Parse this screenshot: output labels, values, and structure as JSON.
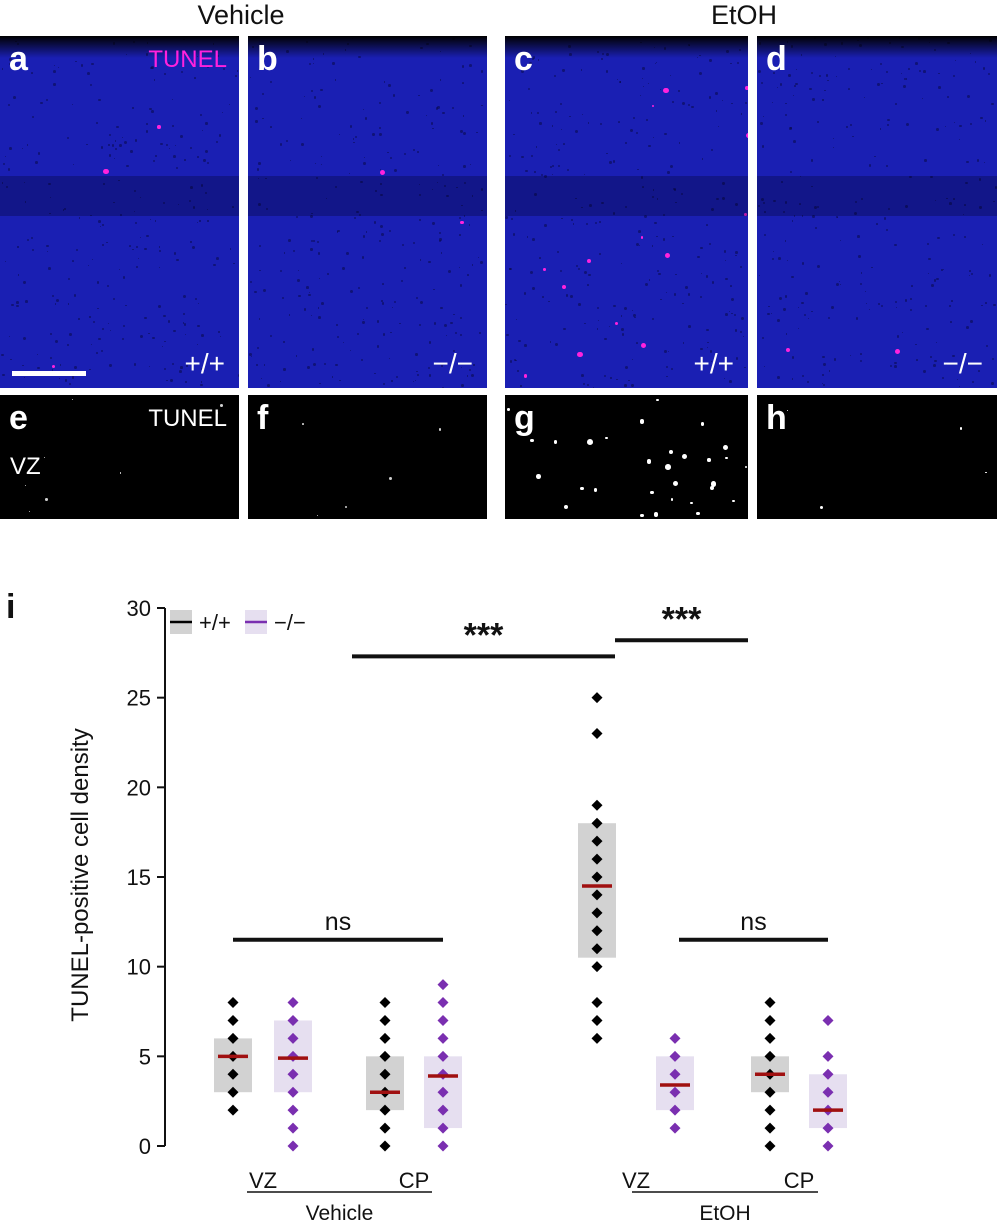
{
  "figure": {
    "groups": [
      "Vehicle",
      "EtOH"
    ],
    "panels": [
      {
        "label": "a",
        "genotype": "+/+",
        "stain": "TUNEL"
      },
      {
        "label": "b",
        "genotype": "−/−"
      },
      {
        "label": "c",
        "genotype": "+/+"
      },
      {
        "label": "d",
        "genotype": "−/−"
      },
      {
        "label": "e",
        "stain": "TUNEL",
        "region": "VZ"
      },
      {
        "label": "f"
      },
      {
        "label": "g"
      },
      {
        "label": "h"
      }
    ],
    "chart_panel_label": "i",
    "colors": {
      "tunel": "#ff22dd",
      "dapi": "#1a1fb3",
      "wt": "#000000",
      "ko": "#7a2fb0",
      "median": "#a01010"
    }
  },
  "chart_data": {
    "type": "scatter",
    "ylabel": "TUNEL-positive cell density",
    "ylim": [
      0,
      30
    ],
    "yticks": [
      "0",
      "5",
      "10",
      "15",
      "20",
      "25",
      "30"
    ],
    "legend": {
      "placement": "top-left",
      "entries": [
        "+/+",
        "−/−"
      ]
    },
    "categories": [
      "VZ",
      "CP",
      "VZ",
      "CP"
    ],
    "group_labels": [
      "Vehicle",
      "EtOH"
    ],
    "series": [
      {
        "name": "+/+",
        "color": "#000000",
        "groups": [
          {
            "treatment": "Vehicle",
            "region": "VZ",
            "box": [
              3,
              6
            ],
            "median": 5,
            "points": [
              2,
              3,
              4,
              5,
              6,
              7,
              8
            ]
          },
          {
            "treatment": "Vehicle",
            "region": "CP",
            "box": [
              2,
              5
            ],
            "median": 3,
            "points": [
              0,
              1,
              2,
              3,
              4,
              5,
              6,
              7,
              8
            ]
          },
          {
            "treatment": "EtOH",
            "region": "VZ",
            "box": [
              10.5,
              18
            ],
            "median": 14.5,
            "points": [
              6,
              7,
              8,
              10,
              11,
              12,
              13,
              14,
              15,
              16,
              17,
              18,
              19,
              23,
              25
            ]
          },
          {
            "treatment": "EtOH",
            "region": "CP",
            "box": [
              3,
              5
            ],
            "median": 4,
            "points": [
              0,
              1,
              2,
              3,
              4,
              5,
              6,
              7,
              8
            ]
          }
        ]
      },
      {
        "name": "−/−",
        "color": "#7a2fb0",
        "groups": [
          {
            "treatment": "Vehicle",
            "region": "VZ",
            "box": [
              3,
              7
            ],
            "median": 4.9,
            "points": [
              0,
              1,
              2,
              3,
              4,
              5,
              6,
              7,
              8
            ]
          },
          {
            "treatment": "Vehicle",
            "region": "CP",
            "box": [
              1,
              5
            ],
            "median": 3.9,
            "points": [
              0,
              1,
              2,
              3,
              4,
              5,
              6,
              7,
              8,
              9
            ]
          },
          {
            "treatment": "EtOH",
            "region": "VZ",
            "box": [
              2,
              5
            ],
            "median": 3.4,
            "points": [
              1,
              2,
              3,
              4,
              5,
              6
            ]
          },
          {
            "treatment": "EtOH",
            "region": "CP",
            "box": [
              1,
              4
            ],
            "median": 2,
            "points": [
              0,
              1,
              2,
              3,
              4,
              5,
              7
            ]
          }
        ]
      }
    ],
    "annotations": [
      {
        "text": "***",
        "from": "Vehicle CP",
        "to": "EtOH VZ",
        "y": 27.3
      },
      {
        "text": "***",
        "from": "EtOH VZ",
        "to": "EtOH CP",
        "y": 28.2
      },
      {
        "text": "ns",
        "from": "Vehicle VZ",
        "to": "Vehicle CP",
        "y": 11.5
      },
      {
        "text": "ns",
        "from": "EtOH VZ",
        "to": "EtOH CP",
        "y": 11.5
      }
    ]
  }
}
